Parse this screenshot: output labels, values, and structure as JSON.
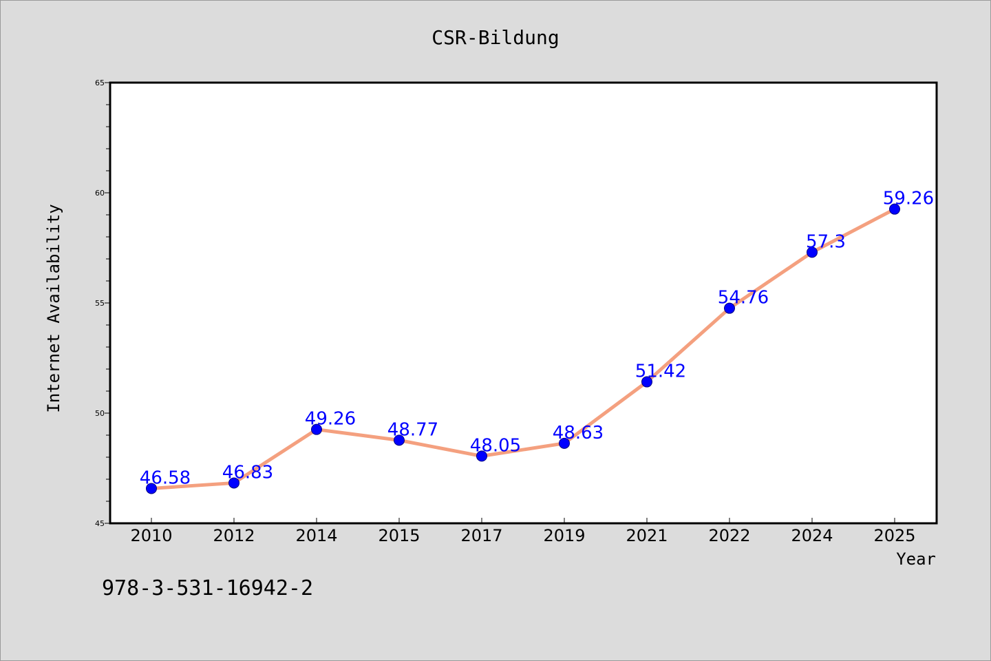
{
  "chart_data": {
    "type": "line",
    "title": "CSR-Bildung",
    "xlabel": "Year",
    "ylabel": "Internet Availability",
    "categories": [
      "2010",
      "2012",
      "2014",
      "2015",
      "2017",
      "2019",
      "2021",
      "2022",
      "2024",
      "2025"
    ],
    "series": [
      {
        "values": [
          46.58,
          46.83,
          49.26,
          48.77,
          48.05,
          48.63,
          51.42,
          54.76,
          57.3,
          59.26
        ],
        "data_labels": [
          "46.58",
          "46.83",
          "49.26",
          "48.77",
          "48.05",
          "48.63",
          "51.42",
          "54.76",
          "57.3",
          "59.26"
        ],
        "line_color": "#f4a07f",
        "marker_color": "#0000ff"
      }
    ],
    "ylim": [
      45,
      65
    ],
    "yticks": [
      45,
      50,
      55,
      60,
      65
    ],
    "ytick_labels": [
      "45",
      "50",
      "55",
      "60",
      "65"
    ],
    "grid": false,
    "legend": "none",
    "label_color": "#0000ff"
  },
  "footer": {
    "isbn": "978-3-531-16942-2"
  },
  "colors": {
    "background": "#dcdcdc",
    "plot_background": "#ffffff",
    "axis": "#000000"
  }
}
